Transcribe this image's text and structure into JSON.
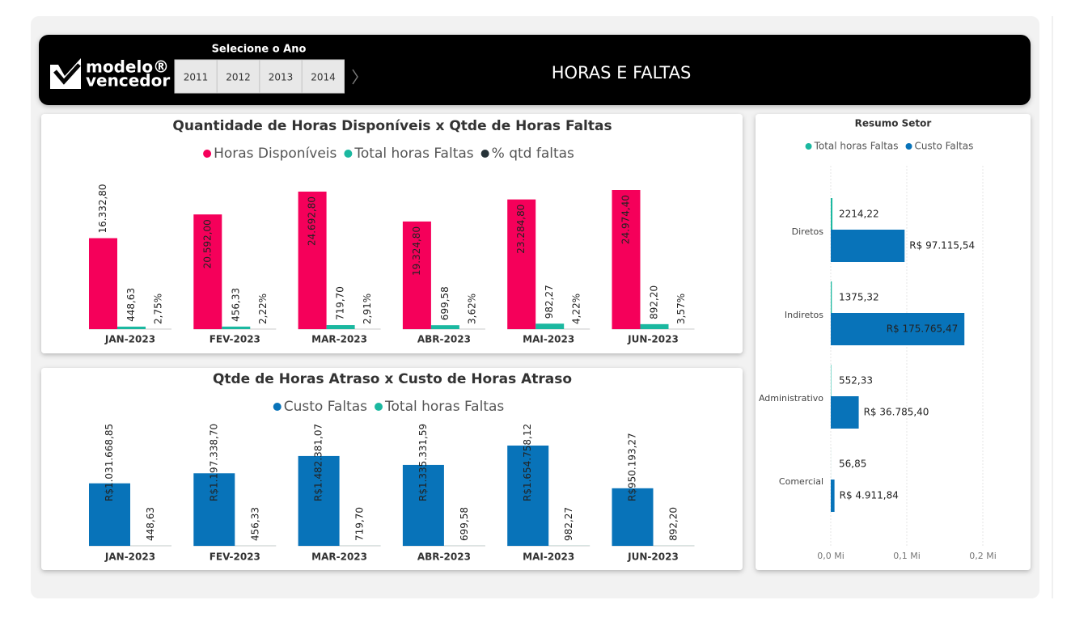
{
  "header": {
    "logo_line1": "modelo®",
    "logo_line2": "vencedor",
    "selector_label": "Selecione o Ano",
    "years": [
      "2011",
      "2012",
      "2013",
      "2014"
    ],
    "title": "HORAS E FALTAS"
  },
  "chart_data": [
    {
      "type": "bar",
      "title": "Quantidade de Horas Disponíveis x Qtde de Horas Faltas",
      "categories": [
        "JAN-2023",
        "FEV-2023",
        "MAR-2023",
        "ABR-2023",
        "MAI-2023",
        "JUN-2023"
      ],
      "series": [
        {
          "name": "Horas Disponíveis",
          "color": "#f5005a",
          "values": [
            16332.8,
            20592.0,
            24692.8,
            19324.8,
            23284.8,
            24974.4
          ],
          "value_labels": [
            "16.332,80",
            "20.592,00",
            "24.692,80",
            "19.324,80",
            "23.284,80",
            "24.974,40"
          ]
        },
        {
          "name": "Total horas Faltas",
          "color": "#1bb8a0",
          "values": [
            448.63,
            456.33,
            719.7,
            699.58,
            982.27,
            892.2
          ],
          "value_labels": [
            "448,63",
            "456,33",
            "719,70",
            "699,58",
            "982,27",
            "892,20"
          ]
        },
        {
          "name": "% qtd faltas",
          "color": "#263238",
          "values": [
            2.75,
            2.22,
            2.91,
            3.62,
            4.22,
            3.57
          ],
          "value_labels": [
            "2,75%",
            "2,22%",
            "2,91%",
            "3,62%",
            "4,22%",
            "3,57%"
          ]
        }
      ]
    },
    {
      "type": "bar",
      "title": "Qtde de Horas Atraso x Custo de Horas Atraso",
      "categories": [
        "JAN-2023",
        "FEV-2023",
        "MAR-2023",
        "ABR-2023",
        "MAI-2023",
        "JUN-2023"
      ],
      "series": [
        {
          "name": "Custo Faltas",
          "color": "#0873b9",
          "values": [
            1031668.85,
            1197338.7,
            1482381.07,
            1335331.59,
            1654758.12,
            950193.27
          ],
          "value_labels": [
            "R$1.031.668,85",
            "R$1.197.338,70",
            "R$1.482.381,07",
            "R$1.335.331,59",
            "R$1.654.758,12",
            "R$950.193,27"
          ]
        },
        {
          "name": "Total horas Faltas",
          "color": "#1bb8a0",
          "values": [
            448.63,
            456.33,
            719.7,
            699.58,
            982.27,
            892.2
          ],
          "value_labels": [
            "448,63",
            "456,33",
            "719,70",
            "699,58",
            "982,27",
            "892,20"
          ]
        }
      ]
    },
    {
      "type": "hbar",
      "title": "Resumo Setor",
      "categories": [
        "Diretos",
        "Indiretos",
        "Administrativo",
        "Comercial"
      ],
      "series": [
        {
          "name": "Total horas Faltas",
          "color": "#1bb8a0",
          "values": [
            2214.22,
            1375.32,
            552.33,
            56.85
          ],
          "value_labels": [
            "2214,22",
            "1375,32",
            "552,33",
            "56,85"
          ]
        },
        {
          "name": "Custo Faltas",
          "color": "#0873b9",
          "values": [
            97115.54,
            175765.47,
            36785.4,
            4911.84
          ],
          "value_labels": [
            "R$ 97.115,54",
            "R$ 175.765,47",
            "R$ 36.785,40",
            "R$ 4.911,84"
          ]
        }
      ],
      "xlim": [
        0,
        200000
      ],
      "xticks": [
        {
          "value": 0,
          "label": "0,0 Mi"
        },
        {
          "value": 100000,
          "label": "0,1 Mi"
        },
        {
          "value": 200000,
          "label": "0,2 Mi"
        }
      ],
      "grid": true
    }
  ]
}
